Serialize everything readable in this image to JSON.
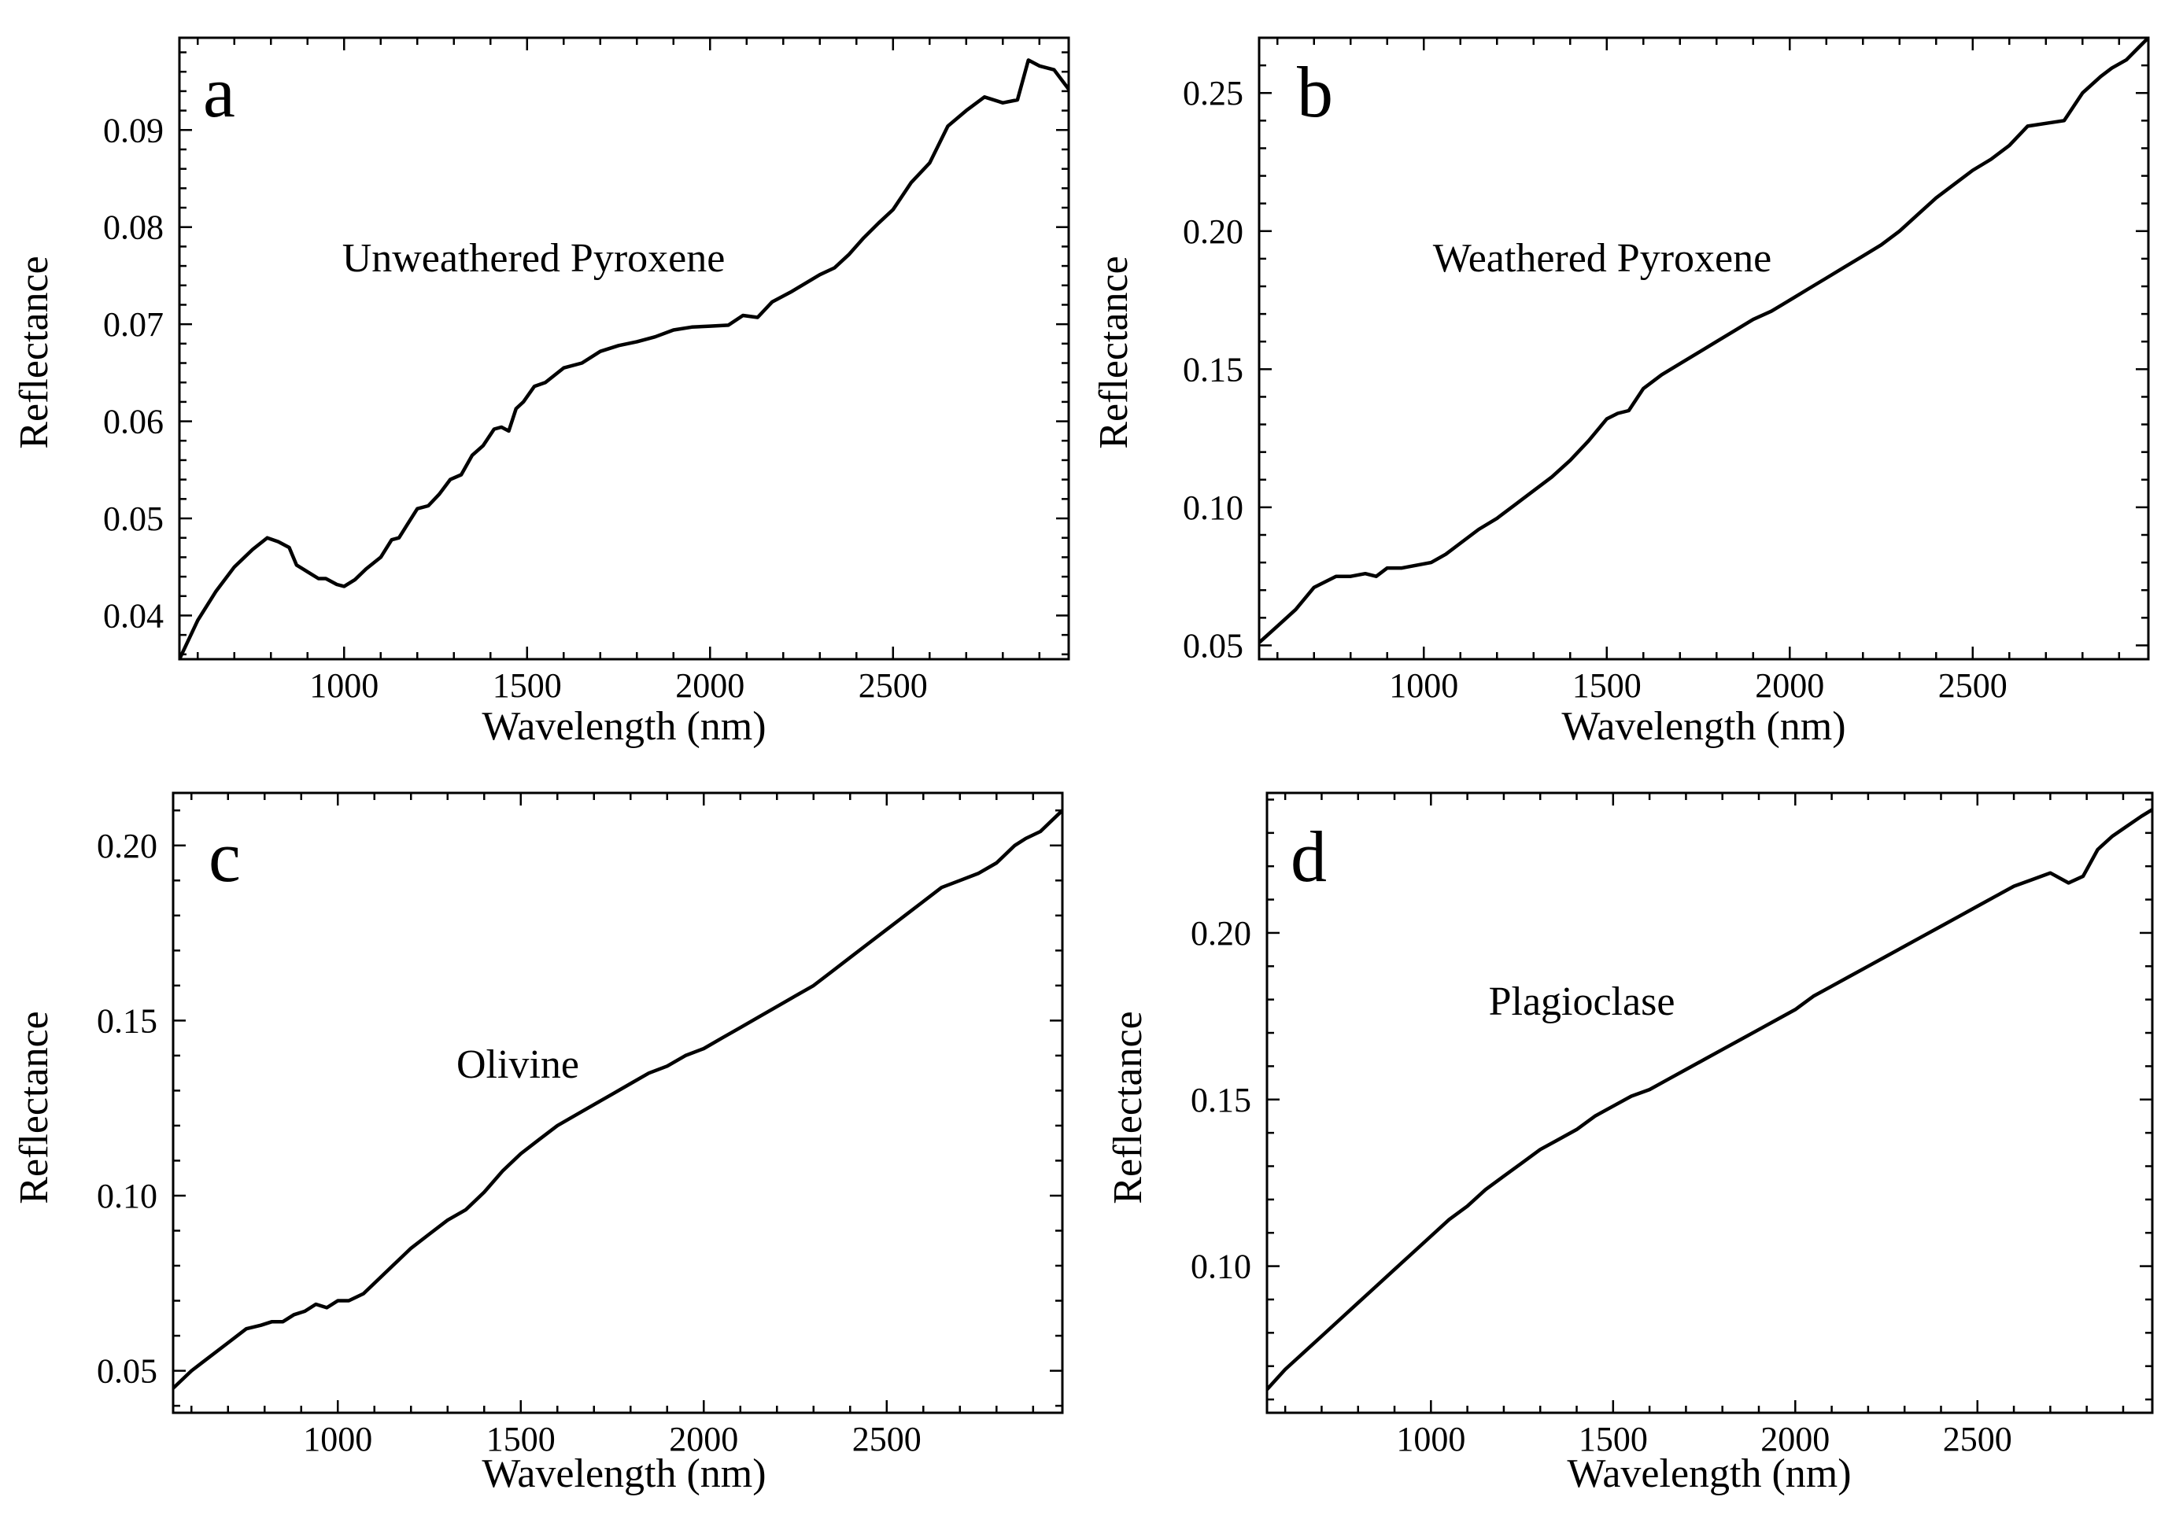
{
  "chart_data": [
    {
      "type": "line",
      "panel": "a",
      "annotation": "Unweathered Pyroxene",
      "xlabel": "Wavelength (nm)",
      "ylabel": "Reflectance",
      "xlim": [
        550,
        2980
      ],
      "ylim": [
        0.0355,
        0.0995
      ],
      "xticks": [
        1000,
        1500,
        2000,
        2500
      ],
      "yticks": [
        0.04,
        0.05,
        0.06,
        0.07,
        0.08,
        0.09
      ],
      "ytick_labels": [
        "0.04",
        "0.05",
        "0.06",
        "0.07",
        "0.08",
        "0.09"
      ],
      "series": [
        {
          "name": "Unweathered Pyroxene",
          "x": [
            550,
            600,
            650,
            700,
            750,
            790,
            820,
            850,
            870,
            900,
            930,
            950,
            980,
            1000,
            1030,
            1060,
            1100,
            1130,
            1150,
            1175,
            1200,
            1230,
            1260,
            1290,
            1320,
            1350,
            1380,
            1410,
            1430,
            1450,
            1470,
            1490,
            1520,
            1550,
            1600,
            1650,
            1700,
            1750,
            1800,
            1850,
            1900,
            1950,
            2000,
            2050,
            2090,
            2130,
            2170,
            2220,
            2260,
            2300,
            2340,
            2380,
            2420,
            2460,
            2500,
            2550,
            2600,
            2650,
            2700,
            2750,
            2800,
            2840,
            2870,
            2900,
            2940,
            2980
          ],
          "y": [
            0.0355,
            0.0395,
            0.0425,
            0.045,
            0.0468,
            0.048,
            0.0476,
            0.047,
            0.0452,
            0.0445,
            0.0438,
            0.0438,
            0.0432,
            0.043,
            0.0437,
            0.0448,
            0.046,
            0.0478,
            0.048,
            0.0495,
            0.051,
            0.0513,
            0.0525,
            0.054,
            0.0545,
            0.0565,
            0.0575,
            0.0592,
            0.0594,
            0.059,
            0.0613,
            0.062,
            0.0636,
            0.064,
            0.0655,
            0.066,
            0.0672,
            0.0678,
            0.0682,
            0.0687,
            0.0694,
            0.0697,
            0.0698,
            0.0699,
            0.0709,
            0.0707,
            0.0723,
            0.0733,
            0.0742,
            0.0751,
            0.0758,
            0.0772,
            0.0789,
            0.0804,
            0.0818,
            0.0846,
            0.0866,
            0.0904,
            0.092,
            0.0934,
            0.0928,
            0.0931,
            0.0972,
            0.0966,
            0.0962,
            0.0942
          ]
        }
      ]
    },
    {
      "type": "line",
      "panel": "b",
      "annotation": "Weathered Pyroxene",
      "xlabel": "Wavelength (nm)",
      "ylabel": "Reflectance",
      "xlim": [
        550,
        2980
      ],
      "ylim": [
        0.045,
        0.27
      ],
      "xticks": [
        1000,
        1500,
        2000,
        2500
      ],
      "yticks": [
        0.05,
        0.1,
        0.15,
        0.2,
        0.25
      ],
      "ytick_labels": [
        "0.05",
        "0.10",
        "0.15",
        "0.20",
        "0.25"
      ],
      "series": [
        {
          "name": "Weathered Pyroxene",
          "x": [
            550,
            600,
            650,
            700,
            730,
            760,
            800,
            840,
            870,
            900,
            940,
            980,
            1020,
            1060,
            1100,
            1150,
            1200,
            1250,
            1300,
            1350,
            1400,
            1450,
            1500,
            1530,
            1560,
            1600,
            1620,
            1650,
            1700,
            1750,
            1800,
            1850,
            1900,
            1950,
            2000,
            2050,
            2100,
            2150,
            2200,
            2250,
            2300,
            2350,
            2400,
            2450,
            2500,
            2550,
            2600,
            2650,
            2700,
            2750,
            2800,
            2850,
            2880,
            2920,
            2950,
            2980
          ],
          "y": [
            0.051,
            0.057,
            0.063,
            0.071,
            0.073,
            0.075,
            0.075,
            0.076,
            0.075,
            0.078,
            0.078,
            0.079,
            0.08,
            0.083,
            0.087,
            0.092,
            0.096,
            0.101,
            0.106,
            0.111,
            0.117,
            0.124,
            0.132,
            0.134,
            0.135,
            0.143,
            0.145,
            0.148,
            0.152,
            0.156,
            0.16,
            0.164,
            0.168,
            0.171,
            0.175,
            0.179,
            0.183,
            0.187,
            0.191,
            0.195,
            0.2,
            0.206,
            0.212,
            0.217,
            0.222,
            0.226,
            0.231,
            0.238,
            0.239,
            0.24,
            0.25,
            0.256,
            0.259,
            0.262,
            0.266,
            0.27
          ]
        }
      ]
    },
    {
      "type": "line",
      "panel": "c",
      "annotation": "Olivine",
      "xlabel": "Wavelength (nm)",
      "ylabel": "Reflectance",
      "xlim": [
        550,
        2980
      ],
      "ylim": [
        0.038,
        0.215
      ],
      "xticks": [
        1000,
        1500,
        2000,
        2500
      ],
      "yticks": [
        0.05,
        0.1,
        0.15,
        0.2
      ],
      "ytick_labels": [
        "0.05",
        "0.10",
        "0.15",
        "0.20"
      ],
      "series": [
        {
          "name": "Olivine",
          "x": [
            550,
            600,
            650,
            700,
            750,
            790,
            820,
            850,
            880,
            910,
            940,
            970,
            1000,
            1030,
            1070,
            1100,
            1150,
            1200,
            1250,
            1300,
            1350,
            1400,
            1450,
            1500,
            1550,
            1600,
            1650,
            1700,
            1750,
            1800,
            1850,
            1900,
            1950,
            2000,
            2050,
            2100,
            2150,
            2200,
            2250,
            2300,
            2350,
            2400,
            2450,
            2500,
            2550,
            2600,
            2650,
            2700,
            2750,
            2800,
            2850,
            2880,
            2920,
            2950,
            2980
          ],
          "y": [
            0.045,
            0.05,
            0.054,
            0.058,
            0.062,
            0.063,
            0.064,
            0.064,
            0.066,
            0.067,
            0.069,
            0.068,
            0.07,
            0.07,
            0.072,
            0.075,
            0.08,
            0.085,
            0.089,
            0.093,
            0.096,
            0.101,
            0.107,
            0.112,
            0.116,
            0.12,
            0.123,
            0.126,
            0.129,
            0.132,
            0.135,
            0.137,
            0.14,
            0.142,
            0.145,
            0.148,
            0.151,
            0.154,
            0.157,
            0.16,
            0.164,
            0.168,
            0.172,
            0.176,
            0.18,
            0.184,
            0.188,
            0.19,
            0.192,
            0.195,
            0.2,
            0.202,
            0.204,
            0.207,
            0.21
          ]
        }
      ]
    },
    {
      "type": "line",
      "panel": "d",
      "annotation": "Plagioclase",
      "xlabel": "Wavelength (nm)",
      "ylabel": "Reflectance",
      "xlim": [
        550,
        2980
      ],
      "ylim": [
        0.056,
        0.242
      ],
      "xticks": [
        1000,
        1500,
        2000,
        2500
      ],
      "yticks": [
        0.1,
        0.15,
        0.2
      ],
      "ytick_labels": [
        "0.10",
        "0.15",
        "0.20"
      ],
      "series": [
        {
          "name": "Plagioclase",
          "x": [
            550,
            600,
            650,
            700,
            750,
            800,
            850,
            900,
            950,
            1000,
            1050,
            1100,
            1150,
            1200,
            1250,
            1300,
            1350,
            1400,
            1450,
            1500,
            1550,
            1600,
            1650,
            1700,
            1750,
            1800,
            1850,
            1900,
            1950,
            2000,
            2050,
            2100,
            2150,
            2200,
            2250,
            2300,
            2350,
            2400,
            2450,
            2500,
            2550,
            2600,
            2650,
            2700,
            2750,
            2790,
            2830,
            2870,
            2910,
            2950,
            2980
          ],
          "y": [
            0.063,
            0.069,
            0.074,
            0.079,
            0.084,
            0.089,
            0.094,
            0.099,
            0.104,
            0.109,
            0.114,
            0.118,
            0.123,
            0.127,
            0.131,
            0.135,
            0.138,
            0.141,
            0.145,
            0.148,
            0.151,
            0.153,
            0.156,
            0.159,
            0.162,
            0.165,
            0.168,
            0.171,
            0.174,
            0.177,
            0.181,
            0.184,
            0.187,
            0.19,
            0.193,
            0.196,
            0.199,
            0.202,
            0.205,
            0.208,
            0.211,
            0.214,
            0.216,
            0.218,
            0.215,
            0.217,
            0.225,
            0.229,
            0.232,
            0.235,
            0.237
          ]
        }
      ]
    }
  ]
}
